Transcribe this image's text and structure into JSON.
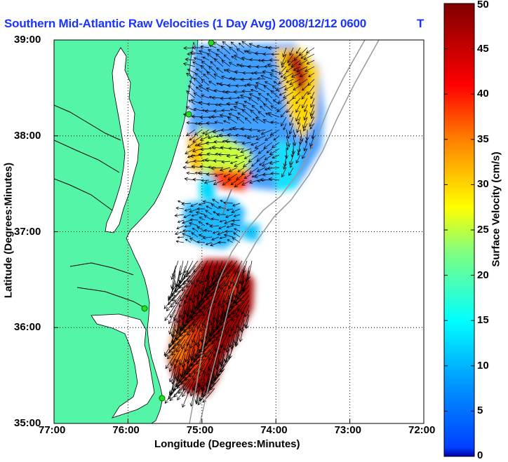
{
  "title": "Southern Mid-Atlantic Raw Velocities (1 Day Avg) 2008/12/12 0600",
  "title_suffix": "T",
  "map": {
    "xlabel": "Longitude (Degrees:Minutes)",
    "ylabel": "Latitude (Degrees:Minutes)",
    "x_ticks": [
      "77:00",
      "76:00",
      "75:00",
      "74:00",
      "73:00",
      "72:00"
    ],
    "y_ticks": [
      "39:00",
      "38:00",
      "37:00",
      "36:00",
      "35:00"
    ],
    "lon_range": [
      -77,
      -72
    ],
    "lat_range": [
      35,
      39
    ],
    "land_color": "#55f5a8",
    "sea_color": "#ffffff"
  },
  "colorbar": {
    "label": "Surface Velocity (cm/s)",
    "ticks": [
      "50",
      "45",
      "40",
      "35",
      "30",
      "25",
      "20",
      "15",
      "10",
      "5",
      "0"
    ],
    "range": [
      0,
      50
    ],
    "colormap": "jet"
  }
}
